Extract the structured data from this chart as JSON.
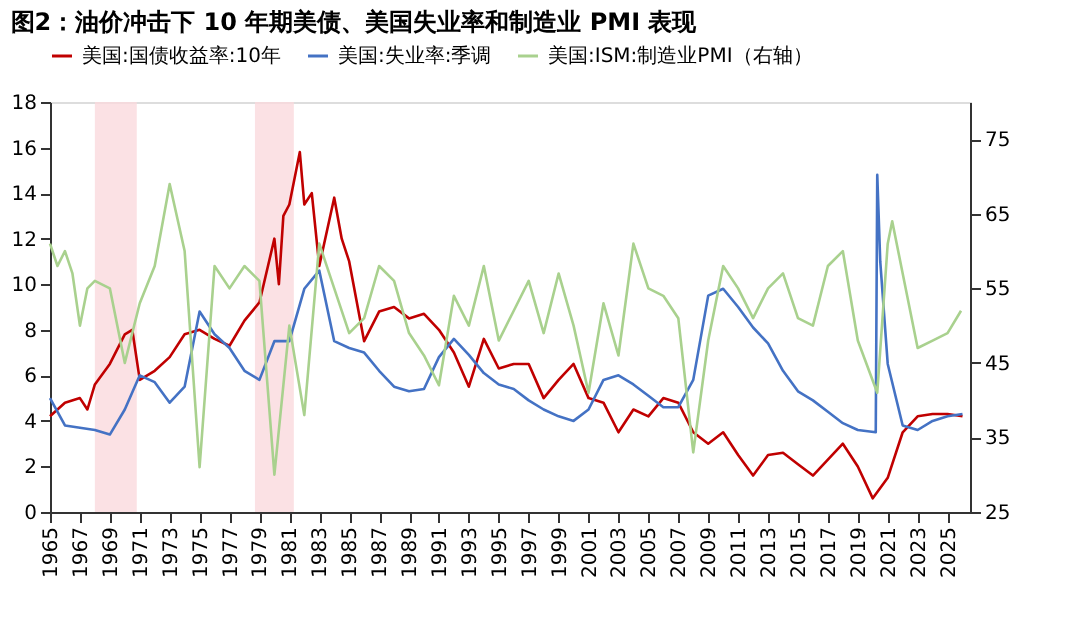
{
  "chart_data": {
    "type": "line",
    "title": "图2：油价冲击下 10 年期美债、美国失业率和制造业 PMI 表现",
    "xlim": [
      1965,
      2026.5
    ],
    "xticks": [
      1965,
      1967,
      1969,
      1971,
      1973,
      1975,
      1977,
      1979,
      1981,
      1983,
      1985,
      1987,
      1989,
      1991,
      1993,
      1995,
      1997,
      1999,
      2001,
      2003,
      2005,
      2007,
      2009,
      2011,
      2013,
      2015,
      2017,
      2019,
      2021,
      2023,
      2025
    ],
    "ylim": [
      0,
      18
    ],
    "yticks": [
      0,
      2,
      4,
      6,
      8,
      10,
      12,
      14,
      16,
      18
    ],
    "y2lim": [
      25,
      80
    ],
    "y2ticks": [
      25,
      35,
      45,
      55,
      65,
      75
    ],
    "legend": "top",
    "grid": false,
    "bands": [
      {
        "axis": "x",
        "from": 1968,
        "to": 1970.8,
        "color": "#fadadd"
      },
      {
        "axis": "x",
        "from": 1978.7,
        "to": 1981.3,
        "color": "#fadadd"
      }
    ],
    "series": [
      {
        "name": "美国:国债收益率:10年",
        "color": "#c00000",
        "x": [
          1965,
          1966,
          1967,
          1967.5,
          1968,
          1969,
          1970,
          1970.5,
          1971,
          1972,
          1973,
          1974,
          1975,
          1976,
          1977,
          1978,
          1979,
          1980,
          1980.3,
          1980.6,
          1981,
          1981.7,
          1982,
          1982.5,
          1983,
          1984,
          1984.5,
          1985,
          1986,
          1987,
          1988,
          1989,
          1990,
          1991,
          1992,
          1993,
          1994,
          1995,
          1996,
          1997,
          1998,
          1999,
          2000,
          2001,
          2002,
          2003,
          2004,
          2005,
          2006,
          2007,
          2008,
          2009,
          2010,
          2011,
          2012,
          2013,
          2014,
          2015,
          2016,
          2017,
          2018,
          2019,
          2020,
          2021,
          2022,
          2023,
          2024,
          2025,
          2026
        ],
        "values": [
          4.2,
          4.8,
          5.0,
          4.5,
          5.6,
          6.5,
          7.8,
          8.0,
          5.8,
          6.2,
          6.8,
          7.8,
          8.0,
          7.6,
          7.3,
          8.4,
          9.2,
          12.0,
          10.0,
          13.0,
          13.5,
          15.8,
          13.5,
          14.0,
          10.8,
          13.8,
          12.0,
          11.0,
          7.5,
          8.8,
          9.0,
          8.5,
          8.7,
          8.0,
          7.0,
          5.5,
          7.6,
          6.3,
          6.5,
          6.5,
          5.0,
          5.8,
          6.5,
          5.0,
          4.8,
          3.5,
          4.5,
          4.2,
          5.0,
          4.8,
          3.5,
          3.0,
          3.5,
          2.5,
          1.6,
          2.5,
          2.6,
          2.1,
          1.6,
          2.3,
          3.0,
          2.0,
          0.6,
          1.5,
          3.5,
          4.2,
          4.3,
          4.3,
          4.2
        ]
      },
      {
        "name": "美国:失业率:季调",
        "color": "#4472c4",
        "x": [
          1965,
          1966,
          1968,
          1969,
          1970,
          1971,
          1972,
          1973,
          1974,
          1975,
          1976,
          1977,
          1978,
          1979,
          1980,
          1981,
          1982,
          1983,
          1984,
          1985,
          1986,
          1987,
          1988,
          1989,
          1990,
          1991,
          1992,
          1993,
          1994,
          1995,
          1996,
          1997,
          1998,
          1999,
          2000,
          2001,
          2002,
          2003,
          2004,
          2005,
          2006,
          2007,
          2008,
          2009,
          2010,
          2011,
          2012,
          2013,
          2014,
          2015,
          2016,
          2017,
          2018,
          2019,
          2020.2,
          2020.3,
          2020.5,
          2021,
          2022,
          2023,
          2024,
          2025,
          2026
        ],
        "values": [
          5.0,
          3.8,
          3.6,
          3.4,
          4.5,
          6.0,
          5.7,
          4.8,
          5.5,
          8.8,
          7.8,
          7.2,
          6.2,
          5.8,
          7.5,
          7.5,
          9.8,
          10.6,
          7.5,
          7.2,
          7.0,
          6.2,
          5.5,
          5.3,
          5.4,
          6.8,
          7.6,
          6.9,
          6.1,
          5.6,
          5.4,
          4.9,
          4.5,
          4.2,
          4.0,
          4.5,
          5.8,
          6.0,
          5.6,
          5.1,
          4.6,
          4.6,
          5.8,
          9.5,
          9.8,
          9.0,
          8.1,
          7.4,
          6.2,
          5.3,
          4.9,
          4.4,
          3.9,
          3.6,
          3.5,
          14.8,
          11.0,
          6.5,
          3.8,
          3.6,
          4.0,
          4.2,
          4.3
        ]
      },
      {
        "name": "美国:ISM:制造业PMI（右轴）",
        "color": "#a9d18e",
        "axis": "y2",
        "x": [
          1965,
          1965.5,
          1966,
          1966.5,
          1967,
          1967.5,
          1968,
          1969,
          1970,
          1971,
          1972,
          1973,
          1974,
          1975,
          1976,
          1977,
          1978,
          1979,
          1980,
          1981,
          1982,
          1983,
          1984,
          1985,
          1986,
          1987,
          1988,
          1989,
          1990,
          1991,
          1992,
          1993,
          1994,
          1995,
          1996,
          1997,
          1998,
          1999,
          2000,
          2001,
          2002,
          2003,
          2004,
          2005,
          2006,
          2007,
          2008,
          2009,
          2010,
          2011,
          2012,
          2013,
          2014,
          2015,
          2016,
          2017,
          2018,
          2019,
          2020.3,
          2021,
          2021.3,
          2022,
          2023,
          2024,
          2025,
          2025.9
        ],
        "values": [
          61,
          58,
          60,
          57,
          50,
          55,
          56,
          55,
          45,
          53,
          58,
          69,
          60,
          31,
          58,
          55,
          58,
          56,
          30,
          50,
          38,
          61,
          55,
          49,
          51,
          58,
          56,
          49,
          46,
          42,
          54,
          50,
          58,
          48,
          52,
          56,
          49,
          57,
          50,
          41,
          53,
          46,
          61,
          55,
          54,
          51,
          33,
          48,
          58,
          55,
          51,
          55,
          57,
          51,
          50,
          58,
          60,
          48,
          41,
          61,
          64,
          57,
          47,
          48,
          49,
          52
        ]
      }
    ]
  }
}
